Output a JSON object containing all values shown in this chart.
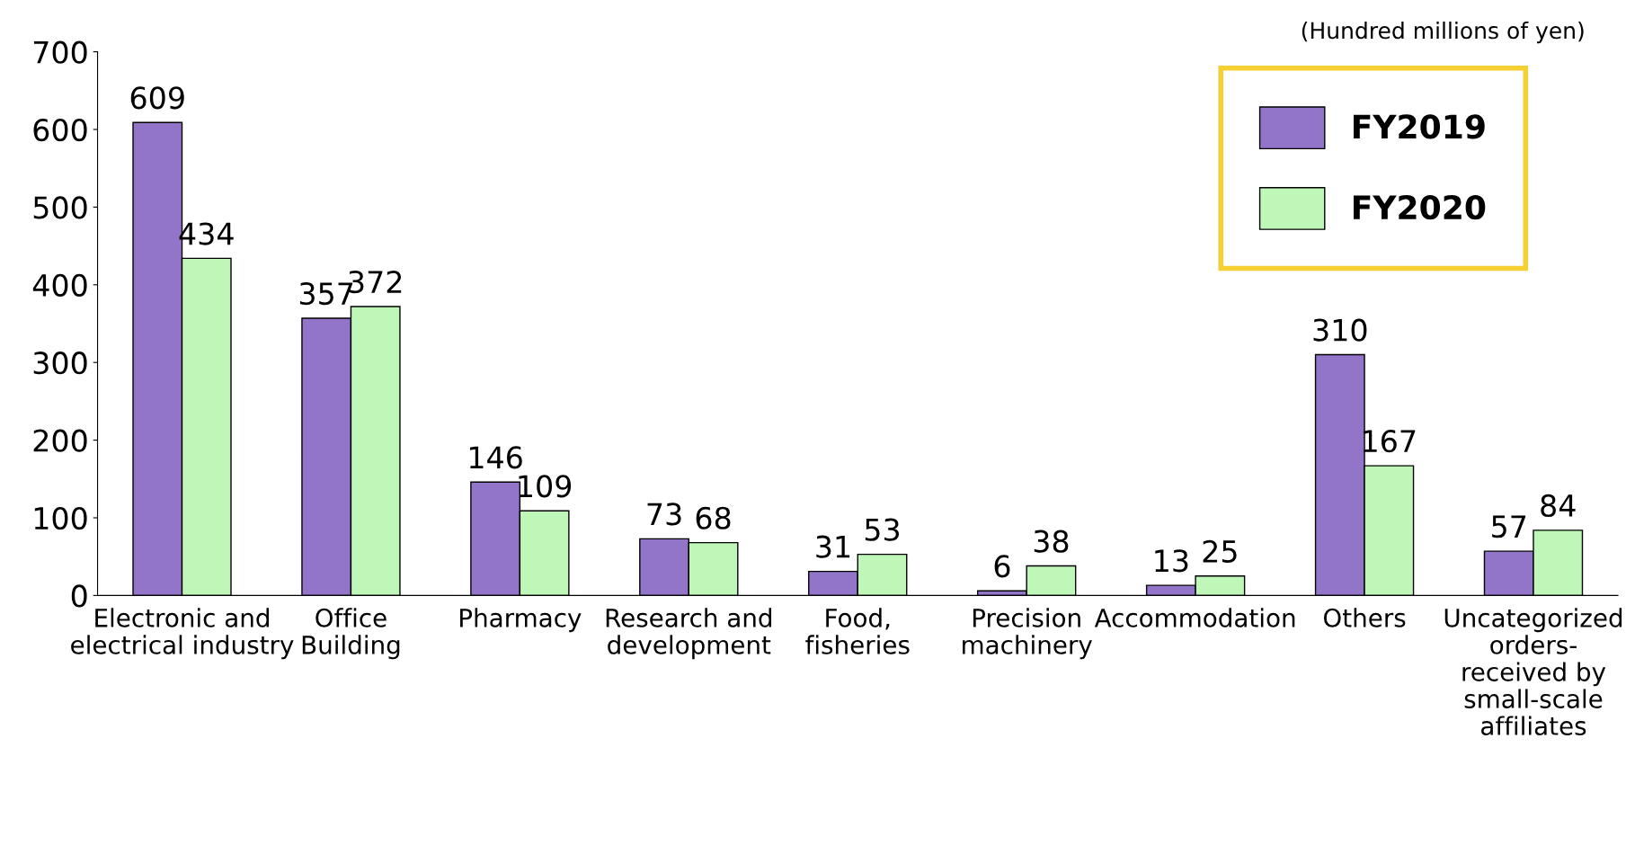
{
  "chart_data": {
    "type": "bar",
    "categories": [
      "Electronic and\nelectrical industry",
      "Office\nBuilding",
      "Pharmacy",
      "Research and\ndevelopment",
      "Food,\nfisheries",
      "Precision\nmachinery",
      "Accommodation",
      "Others",
      "Uncategorized\norders-\nreceived by\nsmall-scale\naffiliates"
    ],
    "series": [
      {
        "name": "FY2019",
        "color": "#9274c8",
        "values": [
          609,
          357,
          146,
          73,
          31,
          6,
          13,
          310,
          57
        ]
      },
      {
        "name": "FY2020",
        "color": "#bff7b8",
        "values": [
          434,
          372,
          109,
          68,
          53,
          38,
          25,
          167,
          84
        ]
      }
    ],
    "ylim": [
      0,
      700
    ],
    "yticks": [
      0,
      100,
      200,
      300,
      400,
      500,
      600,
      700
    ],
    "data_labels": true,
    "grid": false,
    "legend": "top right",
    "annotations": [
      "(Hundred millions of yen)"
    ]
  }
}
